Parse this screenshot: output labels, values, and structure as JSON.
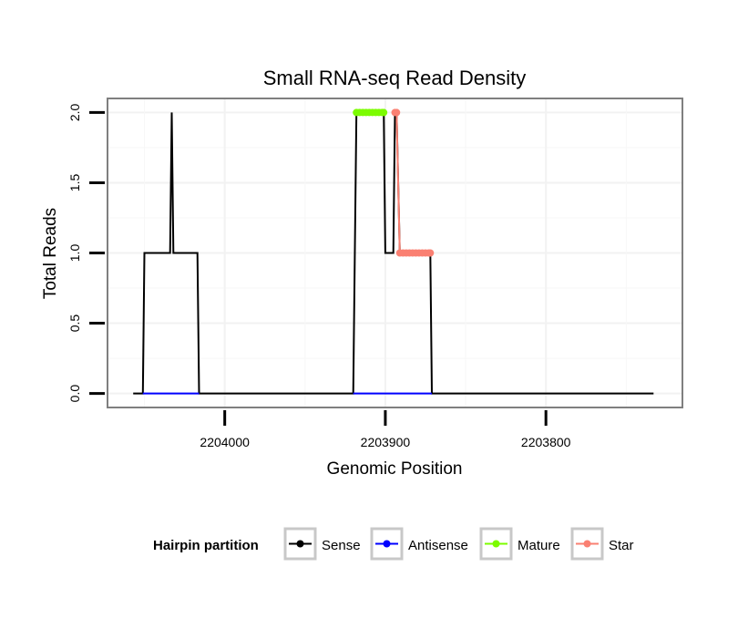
{
  "chart_data": {
    "type": "line",
    "title": "Small RNA-seq Read Density",
    "xlabel": "Genomic Position",
    "ylabel": "Total Reads",
    "xlim": [
      2204073,
      2203715
    ],
    "ylim": [
      -0.1,
      2.1
    ],
    "x_reversed": true,
    "x_ticks": [
      2204000,
      2203900,
      2203800
    ],
    "x_tick_labels": [
      "2204000",
      "2203900",
      "2203800"
    ],
    "y_ticks": [
      0.0,
      0.5,
      1.0,
      1.5,
      2.0
    ],
    "y_tick_labels": [
      "0.0",
      "0.5",
      "1.0",
      "1.5",
      "2.0"
    ],
    "grid": true,
    "legend": {
      "title": "Hairpin partition",
      "placement": "bottom",
      "entries": [
        {
          "label": "Sense",
          "color": "#000000"
        },
        {
          "label": "Antisense",
          "color": "#0000ff"
        },
        {
          "label": "Mature",
          "color": "#7cfc00"
        },
        {
          "label": "Star",
          "color": "#fa8072"
        }
      ]
    },
    "series": [
      {
        "name": "Sense",
        "color": "#000000",
        "style": "line",
        "x": [
          2204057,
          2204051,
          2204050,
          2204034,
          2204033,
          2204032,
          2204017,
          2204016,
          2203920,
          2203918,
          2203901,
          2203900,
          2203899,
          2203895,
          2203894,
          2203893,
          2203891,
          2203890,
          2203889,
          2203872,
          2203871,
          2203733
        ],
        "y": [
          0,
          0,
          1,
          1,
          2,
          1,
          1,
          0,
          0,
          2,
          2,
          1,
          1,
          1,
          2,
          2,
          1,
          1,
          1,
          1,
          0,
          0
        ]
      },
      {
        "name": "Antisense",
        "color": "#0000ff",
        "style": "line",
        "x": [
          2204051,
          2204016,
          2203920,
          2203871
        ],
        "y": [
          0,
          0,
          0,
          0
        ],
        "segments": [
          [
            0,
            1
          ],
          [
            2,
            3
          ]
        ]
      },
      {
        "name": "Mature",
        "color": "#7cfc00",
        "style": "points",
        "x": [
          2203918,
          2203916,
          2203914,
          2203912,
          2203910,
          2203908,
          2203906,
          2203904,
          2203902,
          2203901
        ],
        "y": [
          2,
          2,
          2,
          2,
          2,
          2,
          2,
          2,
          2,
          2
        ]
      },
      {
        "name": "Star",
        "color": "#fa8072",
        "style": "points",
        "x": [
          2203894,
          2203893,
          2203891,
          2203889,
          2203887,
          2203885,
          2203883,
          2203881,
          2203879,
          2203877,
          2203875,
          2203873,
          2203872
        ],
        "y": [
          2,
          2,
          1,
          1,
          1,
          1,
          1,
          1,
          1,
          1,
          1,
          1,
          1
        ]
      }
    ]
  }
}
